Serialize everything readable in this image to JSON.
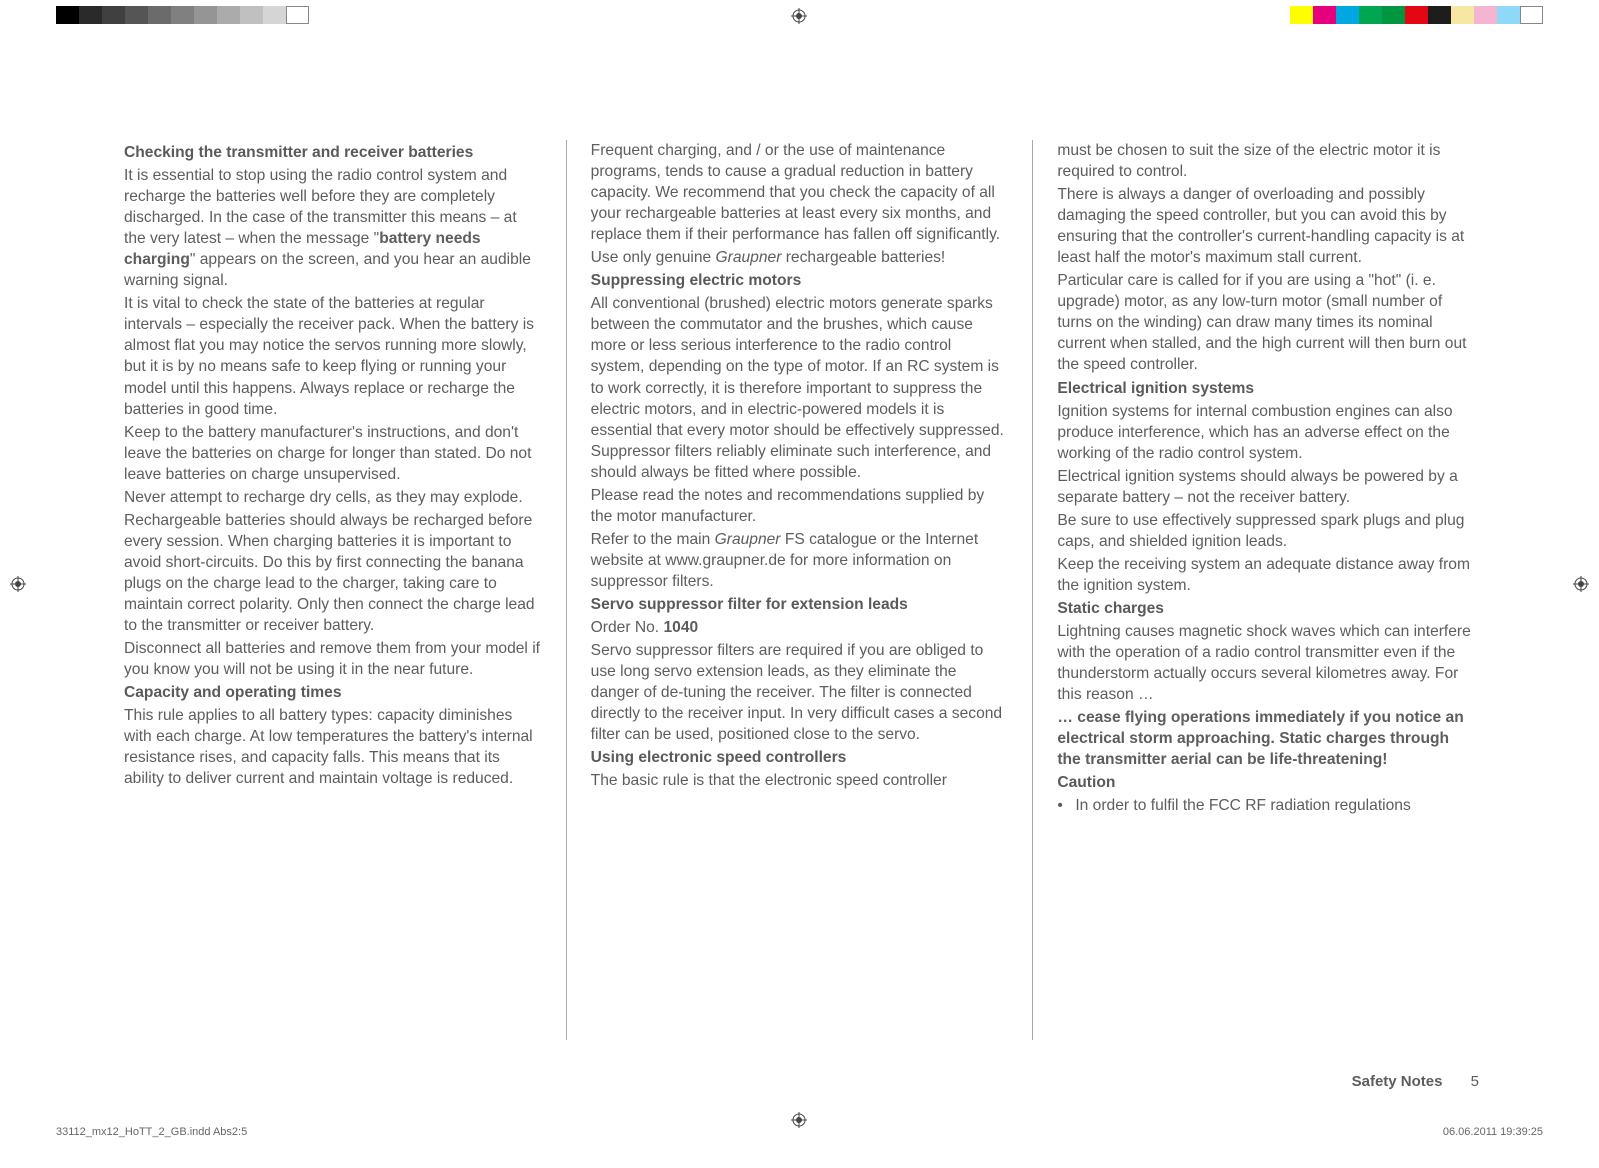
{
  "colorbars": {
    "left_gray": [
      "#000000",
      "#2a2a2a",
      "#404040",
      "#555555",
      "#6b6b6b",
      "#808080",
      "#959595",
      "#ababab",
      "#c0c0c0",
      "#d5d5d5"
    ],
    "right_colors": [
      "#ffff00",
      "#e6007e",
      "#00a7e1",
      "#00a651",
      "#009640",
      "#e30613",
      "#1d1d1b",
      "#f6e7a4",
      "#f5b5d2",
      "#8ed8f8"
    ]
  },
  "column1": {
    "h1": "Checking the transmitter and receiver batteries",
    "p1a": "It is essential to stop using the radio control system and recharge the batteries well before they are completely discharged. In the case of the transmitter this means – at the very latest – when the message \"",
    "p1b": "battery needs charging",
    "p1c": "\" appears on the screen, and you hear an audible warning signal.",
    "p2": "It is vital to check the state of the batteries at regular intervals – especially the receiver pack. When the battery is almost flat you may notice the servos running more slowly, but it is by no means safe to keep flying or running your model until this happens. Always replace or recharge the batteries in good time.",
    "p3": "Keep to the battery manufacturer's instructions, and don't leave the batteries on charge for longer than stated. Do not leave batteries on charge unsupervised.",
    "p4": "Never attempt to recharge dry cells, as they may explode.",
    "p5": "Rechargeable batteries should always be recharged before every session. When charging batteries it is important to avoid short-circuits. Do this by first connecting the banana plugs on the charge lead to the charger, taking care to maintain correct polarity. Only then connect the charge lead to the transmitter or receiver battery.",
    "p6": "Disconnect all batteries and remove them from your model if you know you will not be using it in the near future.",
    "h2": "Capacity and operating times",
    "p7": "This rule applies to all battery types: capacity diminishes with each charge. At low temperatures the battery's internal resistance rises, and capacity falls. This means that its ability to deliver current and maintain voltage is reduced."
  },
  "column2": {
    "p1": "Frequent charging, and / or the use of maintenance programs, tends to cause a gradual reduction in battery capacity. We recommend that you check the capacity of all your rechargeable batteries at least every six months, and replace them if their performance has fallen off significantly.",
    "p2a": "Use only genuine ",
    "p2b": "Graupner",
    "p2c": " rechargeable batteries!",
    "h1": "Suppressing electric motors",
    "p3": "All conventional (brushed) electric motors generate sparks between the commutator and the brushes, which cause more or less serious interference to the radio control system, depending on the type of motor. If an RC system is to work correctly, it is therefore important to suppress the electric motors, and in electric-powered models it is essential that every motor should be effectively suppressed. Suppressor filters reliably eliminate such interference, and should always be fitted where possible.",
    "p4": "Please read the notes and recommendations supplied by the motor manufacturer.",
    "p5a": "Refer to the main ",
    "p5b": "Graupner",
    "p5c": " FS catalogue or the Internet website at www.graupner.de for more information on suppressor filters.",
    "h2": "Servo suppressor filter for extension leads",
    "p6a": "Order No. ",
    "p6b": "1040",
    "p7": "Servo suppressor filters are required if you are obliged to use long servo extension leads, as they eliminate the danger of de-tuning the receiver. The filter is connected directly to the receiver input. In very difficult cases a second filter can be used, positioned close to the servo.",
    "h3": "Using electronic speed controllers",
    "p8": "The basic rule is that the electronic speed controller"
  },
  "column3": {
    "p1": "must be chosen to suit the size of the electric motor it is required to control.",
    "p2": "There is always a danger of overloading and possibly damaging the speed controller, but you can avoid this by ensuring that the controller's current-handling capacity is at least half the motor's maximum stall current.",
    "p3": "Particular care is called for if you are using a \"hot\" (i. e. upgrade) motor, as any low-turn motor (small number of turns on the winding) can draw many times its nominal current when stalled, and the high current will then burn out the speed controller.",
    "h1": "Electrical ignition systems",
    "p4": "Ignition systems for internal combustion engines can also produce interference, which has an adverse effect on the working of the radio control system.",
    "p5": "Electrical ignition systems should always be powered by a separate battery – not the receiver battery.",
    "p6": "Be sure to use effectively suppressed spark plugs and plug caps, and shielded ignition leads.",
    "p7": "Keep the receiving system an adequate distance away from the ignition system.",
    "h2": "Static charges",
    "p8": "Lightning causes magnetic shock waves which can interfere with the operation of a radio control transmitter even if the thunderstorm actually occurs several kilometres away. For this reason …",
    "p9": "… cease flying operations immediately if you notice an electrical storm approaching. Static charges through the transmitter aerial can be life-threatening!",
    "h3": "Caution",
    "b1": "In order to fulfil the FCC RF radiation regulations"
  },
  "footer": {
    "label": "Safety Notes",
    "page": "5"
  },
  "slug": {
    "left": "33112_mx12_HoTT_2_GB.indd   Abs2:5",
    "right": "06.06.2011   19:39:25"
  }
}
